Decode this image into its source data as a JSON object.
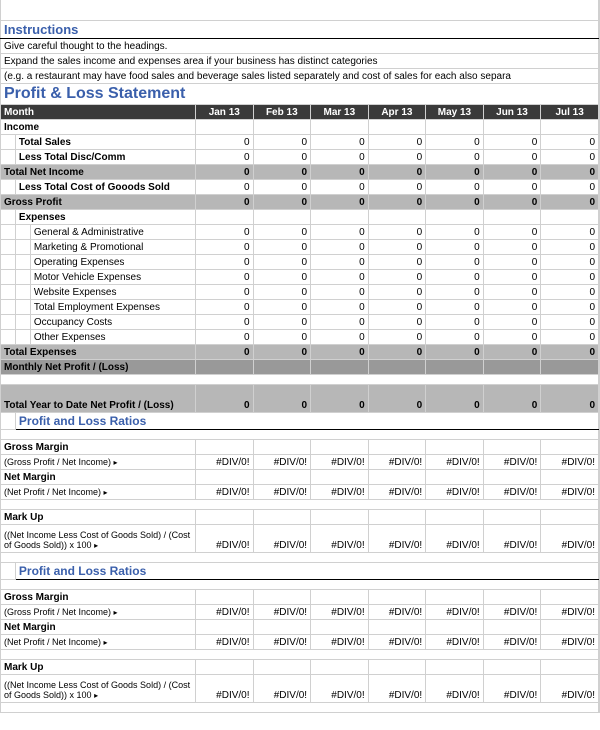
{
  "instructions": {
    "title": "Instructions",
    "line1": "Give careful thought to the headings.",
    "line2": "Expand the sales income and expenses area if your business has distinct categories",
    "line3": "(e.g. a restaurant may have food sales and beverage sales listed separately and cost of sales for each also separa"
  },
  "statement": {
    "title": "Profit & Loss Statement",
    "month_label": "Month",
    "months": [
      "Jan 13",
      "Feb 13",
      "Mar 13",
      "Apr 13",
      "May 13",
      "Jun 13",
      "Jul 13"
    ],
    "income_label": "Income",
    "income_rows": [
      {
        "label": "Total Sales",
        "values": [
          0,
          0,
          0,
          0,
          0,
          0,
          0
        ],
        "shaded": false
      },
      {
        "label": "Less Total Disc/Comm",
        "values": [
          0,
          0,
          0,
          0,
          0,
          0,
          0
        ],
        "shaded": false
      },
      {
        "label": "Total Net Income",
        "values": [
          0,
          0,
          0,
          0,
          0,
          0,
          0
        ],
        "shaded": true
      },
      {
        "label": "Less Total Cost of Gooods Sold",
        "values": [
          0,
          0,
          0,
          0,
          0,
          0,
          0
        ],
        "shaded": false
      },
      {
        "label": "Gross Profit",
        "values": [
          0,
          0,
          0,
          0,
          0,
          0,
          0
        ],
        "shaded": true
      }
    ],
    "expenses_label": "Expenses",
    "expense_rows": [
      {
        "label": "General & Administrative",
        "values": [
          0,
          0,
          0,
          0,
          0,
          0,
          0
        ]
      },
      {
        "label": "Marketing & Promotional",
        "values": [
          0,
          0,
          0,
          0,
          0,
          0,
          0
        ]
      },
      {
        "label": "Operating Expenses",
        "values": [
          0,
          0,
          0,
          0,
          0,
          0,
          0
        ]
      },
      {
        "label": "Motor Vehicle Expenses",
        "values": [
          0,
          0,
          0,
          0,
          0,
          0,
          0
        ]
      },
      {
        "label": "Website Expenses",
        "values": [
          0,
          0,
          0,
          0,
          0,
          0,
          0
        ]
      },
      {
        "label": "Total Employment Expenses",
        "values": [
          0,
          0,
          0,
          0,
          0,
          0,
          0
        ]
      },
      {
        "label": "Occupancy Costs",
        "values": [
          0,
          0,
          0,
          0,
          0,
          0,
          0
        ]
      },
      {
        "label": "Other Expenses",
        "values": [
          0,
          0,
          0,
          0,
          0,
          0,
          0
        ]
      }
    ],
    "total_expenses": {
      "label": "Total Expenses",
      "values": [
        0,
        0,
        0,
        0,
        0,
        0,
        0
      ]
    },
    "monthly_net": {
      "label": "Monthly Net Profit / (Loss)",
      "values": [
        "",
        "",
        "",
        "",
        "",
        "",
        ""
      ]
    },
    "ytd": {
      "label": "Total Year to Date Net Profit / (Loss)",
      "values": [
        0,
        0,
        0,
        0,
        0,
        0,
        0
      ]
    }
  },
  "ratios": {
    "title": "Profit and Loss Ratios",
    "gross_margin": {
      "label": "Gross Margin",
      "sub": "(Gross Profit / Net Income)",
      "values": [
        "#DIV/0!",
        "#DIV/0!",
        "#DIV/0!",
        "#DIV/0!",
        "#DIV/0!",
        "#DIV/0!",
        "#DIV/0!"
      ]
    },
    "net_margin": {
      "label": "Net Margin",
      "sub": "(Net Profit / Net Income)",
      "values": [
        "#DIV/0!",
        "#DIV/0!",
        "#DIV/0!",
        "#DIV/0!",
        "#DIV/0!",
        "#DIV/0!",
        "#DIV/0!"
      ]
    },
    "markup": {
      "label": "Mark Up",
      "sub": "((Net Income Less Cost of Goods Sold) / (Cost of Goods Sold)) x 100",
      "values": [
        "#DIV/0!",
        "#DIV/0!",
        "#DIV/0!",
        "#DIV/0!",
        "#DIV/0!",
        "#DIV/0!",
        "#DIV/0!"
      ]
    }
  },
  "arrow": "▸"
}
